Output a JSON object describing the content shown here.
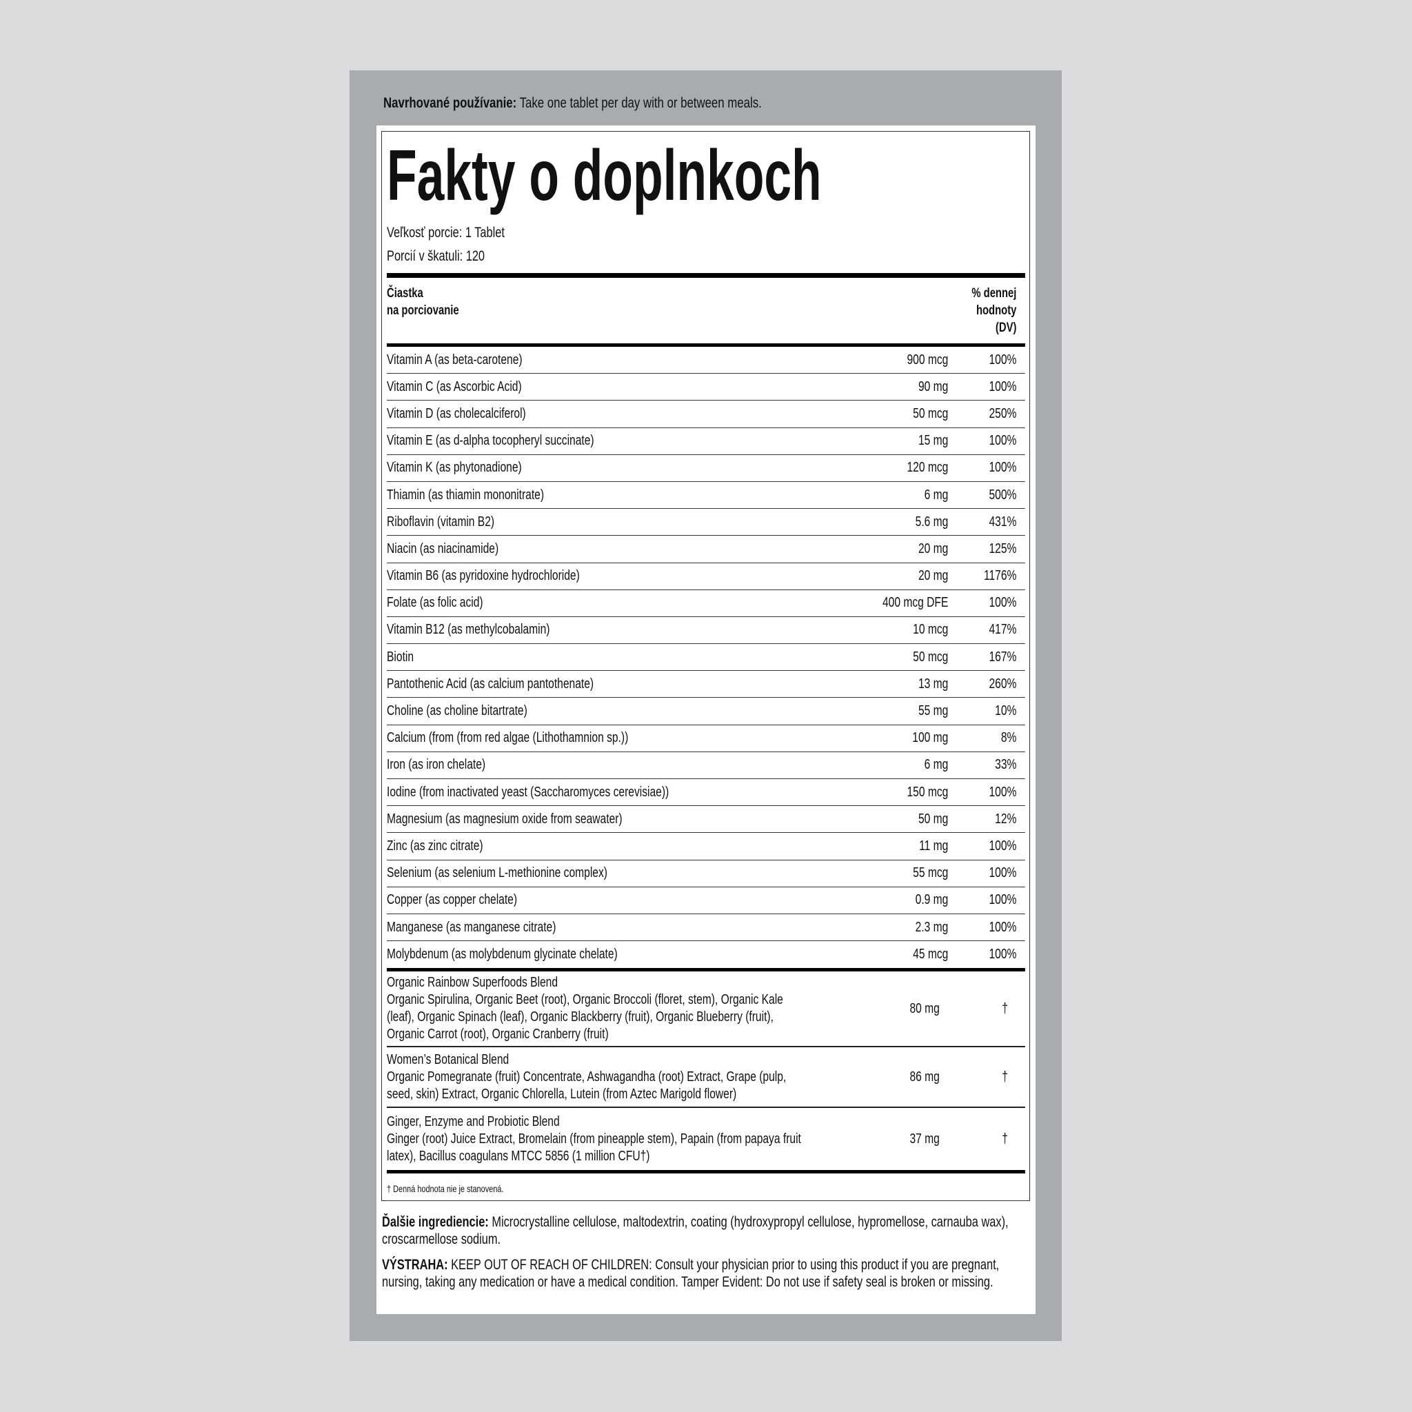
{
  "usage": {
    "label": "Navrhované používanie:",
    "text": "Take one tablet per day with or between meals."
  },
  "facts": {
    "title": "Fakty o doplnkoch",
    "serving_size": "Veľkosť porcie: 1 Tablet",
    "servings": "Porcií v škatuli: 120",
    "header": {
      "amount_l1": "Čiastka",
      "amount_l2": "na porciovanie",
      "dv_l1": "% dennej",
      "dv_l2": "hodnoty",
      "dv_l3": "(DV)"
    },
    "rows": [
      {
        "name": "Vitamin A (as beta-carotene)",
        "amount": "900 mcg",
        "dv": "100%"
      },
      {
        "name": "Vitamin C (as Ascorbic Acid)",
        "amount": "90 mg",
        "dv": "100%"
      },
      {
        "name": "Vitamin D (as cholecalciferol)",
        "amount": "50 mcg",
        "dv": "250%"
      },
      {
        "name": "Vitamin E (as d-alpha tocopheryl succinate)",
        "amount": "15 mg",
        "dv": "100%"
      },
      {
        "name": "Vitamin K (as phytonadione)",
        "amount": "120 mcg",
        "dv": "100%"
      },
      {
        "name": "Thiamin (as thiamin mononitrate)",
        "amount": "6 mg",
        "dv": "500%"
      },
      {
        "name": "Riboflavin (vitamin B2)",
        "amount": "5.6 mg",
        "dv": "431%"
      },
      {
        "name": "Niacin (as niacinamide)",
        "amount": "20 mg",
        "dv": "125%"
      },
      {
        "name": "Vitamin B6 (as pyridoxine hydrochloride)",
        "amount": "20 mg",
        "dv": "1176%"
      },
      {
        "name": "Folate (as folic acid)",
        "amount": "400 mcg DFE",
        "dv": "100%"
      },
      {
        "name": "Vitamin B12 (as methylcobalamin)",
        "amount": "10 mcg",
        "dv": "417%"
      },
      {
        "name": "Biotin",
        "amount": "50 mcg",
        "dv": "167%"
      },
      {
        "name": "Pantothenic Acid (as calcium pantothenate)",
        "amount": "13 mg",
        "dv": "260%"
      },
      {
        "name": "Choline (as choline bitartrate)",
        "amount": "55 mg",
        "dv": "10%"
      },
      {
        "name": "Calcium (from (from red algae (Lithothamnion sp.))",
        "amount": "100 mg",
        "dv": "8%"
      },
      {
        "name": "Iron (as iron chelate)",
        "amount": "6 mg",
        "dv": "33%"
      },
      {
        "name": "Iodine (from inactivated yeast (Saccharomyces cerevisiae))",
        "amount": "150 mcg",
        "dv": "100%"
      },
      {
        "name": "Magnesium (as magnesium oxide from seawater)",
        "amount": "50 mg",
        "dv": "12%"
      },
      {
        "name": "Zinc (as zinc citrate)",
        "amount": "11 mg",
        "dv": "100%"
      },
      {
        "name": "Selenium (as selenium L-methionine complex)",
        "amount": "55 mcg",
        "dv": "100%"
      },
      {
        "name": "Copper (as copper chelate)",
        "amount": "0.9 mg",
        "dv": "100%"
      },
      {
        "name": "Manganese (as manganese citrate)",
        "amount": "2.3 mg",
        "dv": "100%"
      },
      {
        "name": "Molybdenum (as molybdenum glycinate chelate)",
        "amount": "45 mcg",
        "dv": "100%"
      }
    ],
    "blends": [
      {
        "name": "Organic Rainbow Superfoods Blend",
        "detail": "Organic Spirulina, Organic Beet (root), Organic Broccoli (floret, stem), Organic Kale (leaf), Organic Spinach (leaf), Organic Blackberry (fruit), Organic Blueberry (fruit), Organic Carrot (root), Organic Cranberry (fruit)",
        "amount": "80 mg",
        "dv": "†"
      },
      {
        "name": "Women’s Botanical Blend",
        "detail": "Organic Pomegranate (fruit) Concentrate, Ashwagandha (root) Extract, Grape (pulp, seed, skin) Extract, Organic Chlorella, Lutein (from Aztec Marigold flower)",
        "amount": "86 mg",
        "dv": "†"
      },
      {
        "name": "Ginger, Enzyme and Probiotic Blend",
        "detail": "Ginger (root) Juice Extract, Bromelain (from pineapple stem), Papain (from papaya fruit latex), Bacillus coagulans MTCC 5856 (1 million CFU†)",
        "amount": "37 mg",
        "dv": "†"
      }
    ],
    "footnote": "† Denná hodnota nie je stanovená."
  },
  "other": {
    "label": "Ďalšie ingrediencie:",
    "text": "Microcrystalline cellulose, maltodextrin, coating (hydroxypropyl cellulose, hypromellose, carnauba wax), croscarmellose sodium."
  },
  "warning": {
    "label": "VÝSTRAHA:",
    "text": "KEEP OUT OF REACH OF CHILDREN: Consult your physician prior to using this product if you are pregnant, nursing, taking any medication or have a medical condition. Tamper Evident: Do not use if safety seal is broken or missing."
  }
}
